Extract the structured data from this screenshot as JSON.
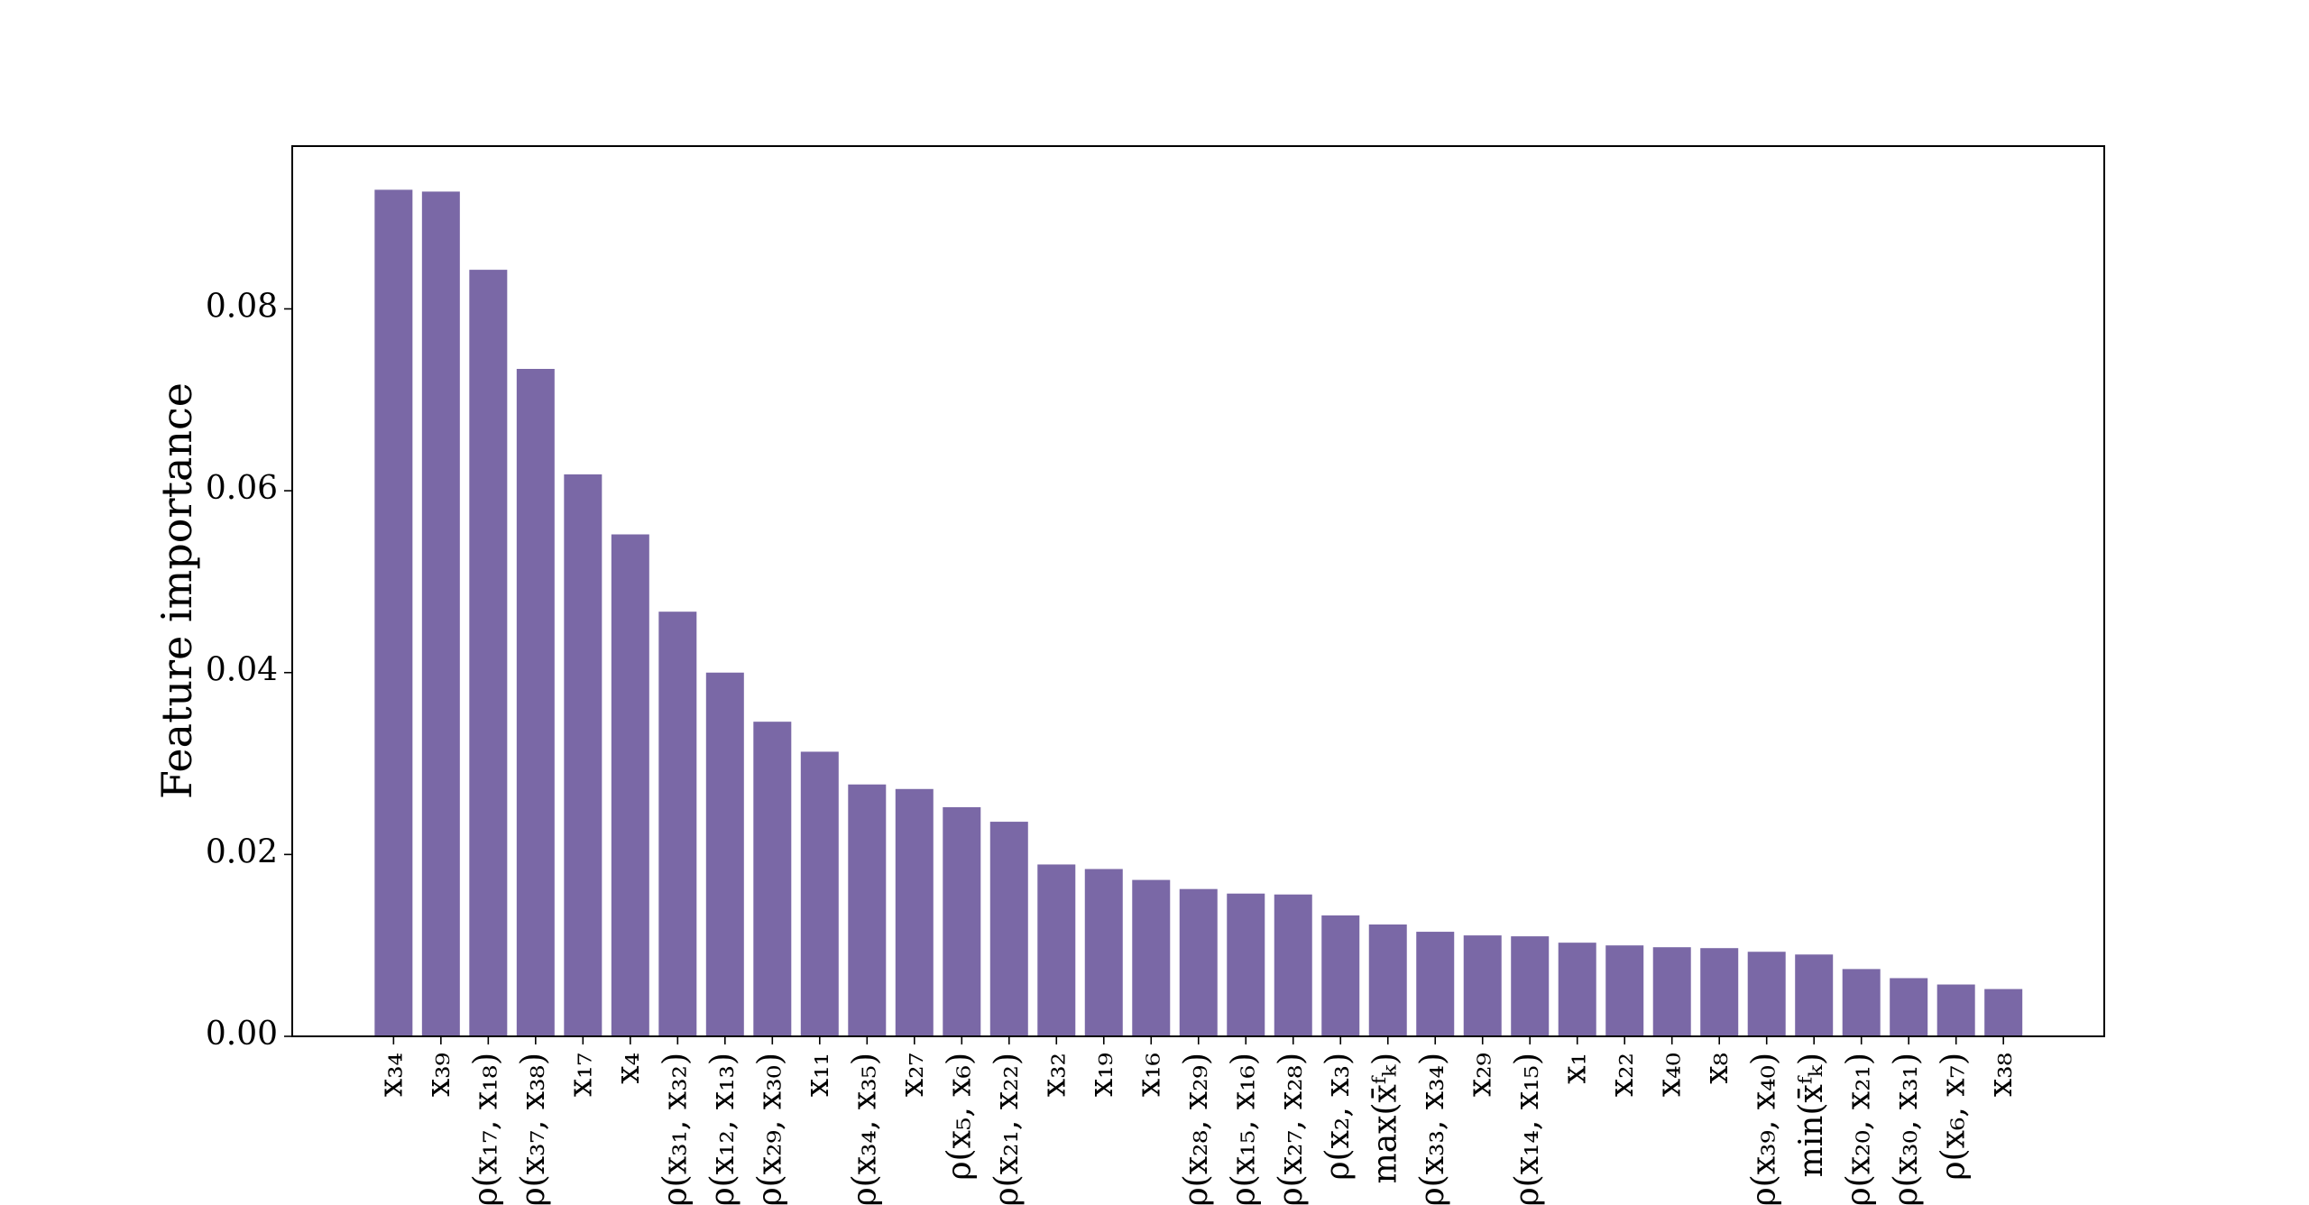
{
  "chart_data": {
    "type": "bar",
    "ylabel": "Feature importance",
    "categories": [
      "x₃₄",
      "x₃₉",
      "ρ(x₁₇, x₁₈)",
      "ρ(x₃₇, x₃₈)",
      "x₁₇",
      "x₄",
      "ρ(x₃₁, x₃₂)",
      "ρ(x₁₂, x₁₃)",
      "ρ(x₂₉, x₃₀)",
      "x₁₁",
      "ρ(x₃₄, x₃₅)",
      "x₂₇",
      "ρ(x₅, x₆)",
      "ρ(x₂₁, x₂₂)",
      "x₃₂",
      "x₁₉",
      "x₁₆",
      "ρ(x₂₈, x₂₉)",
      "ρ(x₁₅, x₁₆)",
      "ρ(x₂₇, x₂₈)",
      "ρ(x₂, x₃)",
      "max(x̄ᶠₖ)",
      "ρ(x₃₃, x₃₄)",
      "x₂₉",
      "ρ(x₁₄, x₁₅)",
      "x₁",
      "x₂₂",
      "x₄₀",
      "x₈",
      "ρ(x₃₉, x₄₀)",
      "min(x̄ᶠₖ)",
      "ρ(x₂₀, x₂₁)",
      "ρ(x₃₀, x₃₁)",
      "ρ(x₆, x₇)",
      "x₃₈"
    ],
    "values": [
      0.0931,
      0.0929,
      0.0843,
      0.0734,
      0.0618,
      0.0552,
      0.0467,
      0.04,
      0.0346,
      0.0313,
      0.0277,
      0.0272,
      0.0252,
      0.0236,
      0.0189,
      0.0184,
      0.0172,
      0.0162,
      0.0157,
      0.0156,
      0.0133,
      0.0123,
      0.0115,
      0.0111,
      0.011,
      0.0103,
      0.01,
      0.0098,
      0.0097,
      0.0093,
      0.009,
      0.0074,
      0.0064,
      0.0057,
      0.0052
    ],
    "color": "#7a68a6",
    "ylim": [
      0,
      0.0979
    ],
    "yticks": [
      {
        "value": 0,
        "label": "0.00"
      },
      {
        "value": 0.02,
        "label": "0.02"
      },
      {
        "value": 0.04,
        "label": "0.04"
      },
      {
        "value": 0.06,
        "label": "0.06"
      },
      {
        "value": 0.08,
        "label": "0.08"
      }
    ],
    "grid": false
  }
}
